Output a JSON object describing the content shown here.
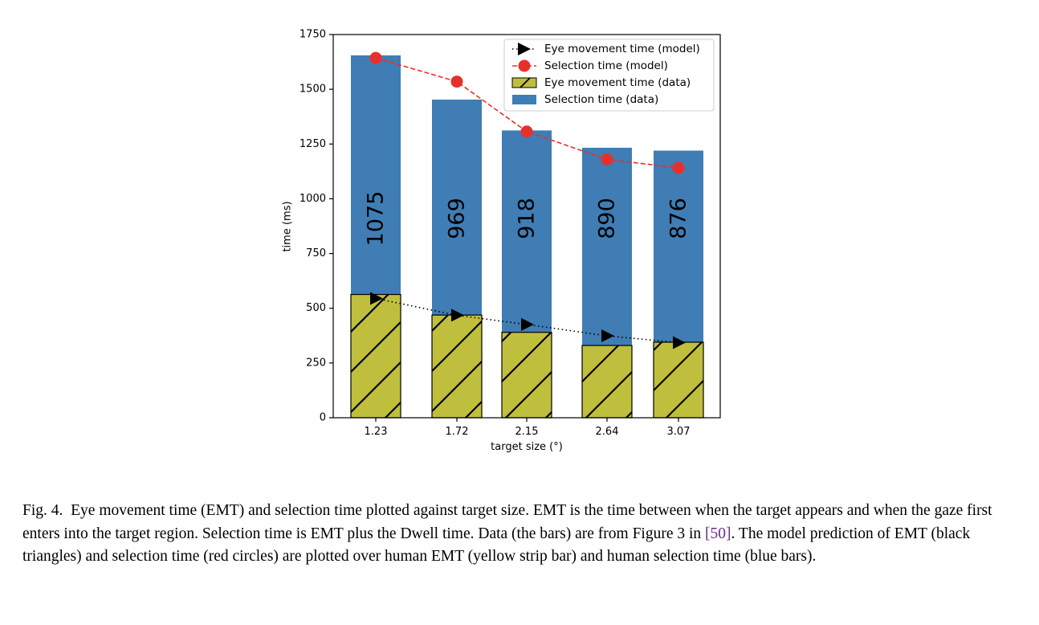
{
  "chart_data": {
    "type": "bar",
    "categories": [
      "1.23",
      "1.72",
      "2.15",
      "2.64",
      "3.07"
    ],
    "series": [
      {
        "name": "Selection time (data)",
        "kind": "bar",
        "values": [
          1655,
          1453,
          1312,
          1233,
          1220
        ],
        "color": "#3f7db4"
      },
      {
        "name": "Eye movement time (data)",
        "kind": "bar",
        "hatch": true,
        "values": [
          563,
          469,
          390,
          330,
          345
        ],
        "color": "#bfbf3d"
      },
      {
        "name": "Eye movement time (model)",
        "kind": "line",
        "marker": "triangle-right",
        "linestyle": "dotted",
        "values": [
          545,
          468,
          426,
          374,
          343
        ],
        "color": "#000000"
      },
      {
        "name": "Selection time (model)",
        "kind": "line",
        "marker": "circle",
        "linestyle": "dashed",
        "values": [
          1643,
          1535,
          1307,
          1180,
          1141
        ],
        "color": "#e8302a"
      }
    ],
    "bar_labels": [
      "1075",
      "969",
      "918",
      "890",
      "876"
    ],
    "xlabel": "target size (°)",
    "ylabel": "time (ms)",
    "ylim": [
      0,
      1750
    ],
    "yticks": [
      "0",
      "250",
      "500",
      "750",
      "1000",
      "1250",
      "1500",
      "1750"
    ],
    "legend": {
      "placement": "top-right",
      "entries": [
        "Eye movement time (model)",
        "Selection time (model)",
        "Eye movement time (data)",
        "Selection time (data)"
      ]
    }
  },
  "caption": {
    "label": "Fig. 4.",
    "text_1": "Eye movement time (EMT) and selection time plotted against target size. EMT is the time between when the target appears and when the gaze first enters into the target region. Selection time is EMT plus the Dwell time. Data (the bars) are from Figure 3 in",
    "citation": "[50]",
    "text_2": ". The model prediction of EMT (black triangles) and selection time (red circles) are plotted over human EMT (yellow strip bar) and human selection time (blue bars)."
  }
}
